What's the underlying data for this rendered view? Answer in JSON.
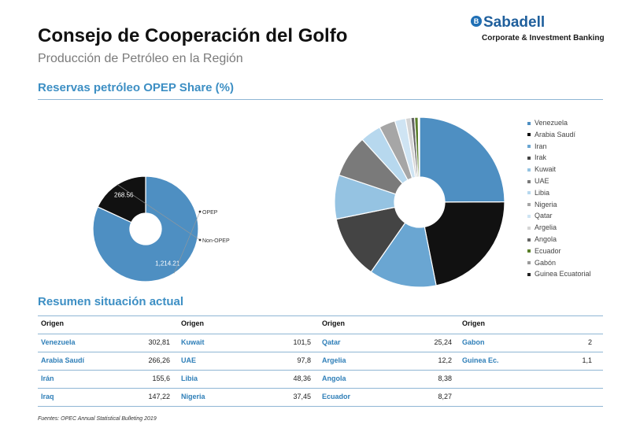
{
  "header": {
    "title": "Consejo de Cooperación del Golfo",
    "subtitle": "Producción de Petróleo en la Región"
  },
  "logo": {
    "mark": "B",
    "name": "Sabadell",
    "tagline": "Corporate & Investment Banking"
  },
  "section1_title": "Reservas petróleo OPEP Share (%)",
  "section2_title": "Resumen situación actual",
  "chart_data": [
    {
      "type": "pie",
      "subtype": "donut",
      "labels": [
        "OPEP",
        "Non-OPEP"
      ],
      "values": [
        1214.21,
        268.56
      ],
      "value_labels": [
        "1,214.21",
        "268.56"
      ],
      "colors": [
        "#4e8fc2",
        "#111111"
      ],
      "legend_position": "right"
    },
    {
      "type": "pie",
      "subtype": "donut",
      "labels": [
        "Venezuela",
        "Arabia Saudí",
        "Iran",
        "Irak",
        "Kuwait",
        "UAE",
        "Libia",
        "Nigeria",
        "Qatar",
        "Argelia",
        "Angola",
        "Ecuador",
        "Gabón",
        "Guinea Ecuatorial"
      ],
      "values": [
        302.81,
        266.26,
        155.6,
        147.22,
        101.5,
        97.8,
        48.36,
        37.45,
        25.24,
        12.2,
        8.38,
        8.27,
        2,
        1.1
      ],
      "colors": [
        "#4e8fc2",
        "#111111",
        "#6aa6d2",
        "#444444",
        "#95c3e2",
        "#7a7a7a",
        "#b7d8ee",
        "#a6a6a6",
        "#cfe4f3",
        "#d4d4d4",
        "#666666",
        "#5a7f2a",
        "#9a9a9a",
        "#222222"
      ],
      "legend_position": "right"
    }
  ],
  "table": {
    "header": "Origen",
    "columns": [
      [
        {
          "name": "Venezuela",
          "value": "302,81"
        },
        {
          "name": "Arabia Saudí",
          "value": "266,26"
        },
        {
          "name": "Irán",
          "value": "155,6"
        },
        {
          "name": "Iraq",
          "value": "147,22"
        }
      ],
      [
        {
          "name": "Kuwait",
          "value": "101,5"
        },
        {
          "name": "UAE",
          "value": "97,8"
        },
        {
          "name": "Libia",
          "value": "48,36"
        },
        {
          "name": "Nigeria",
          "value": "37,45"
        }
      ],
      [
        {
          "name": "Qatar",
          "value": "25,24"
        },
        {
          "name": "Argelia",
          "value": "12,2"
        },
        {
          "name": "Angola",
          "value": "8,38"
        },
        {
          "name": "Ecuador",
          "value": "8,27"
        }
      ],
      [
        {
          "name": "Gabon",
          "value": "2"
        },
        {
          "name": "Guinea Ec.",
          "value": "1,1"
        },
        {
          "name": "",
          "value": ""
        },
        {
          "name": "",
          "value": ""
        }
      ]
    ]
  },
  "source": "Fuentes: OPEC Annual Statistical Bulleting 2019"
}
